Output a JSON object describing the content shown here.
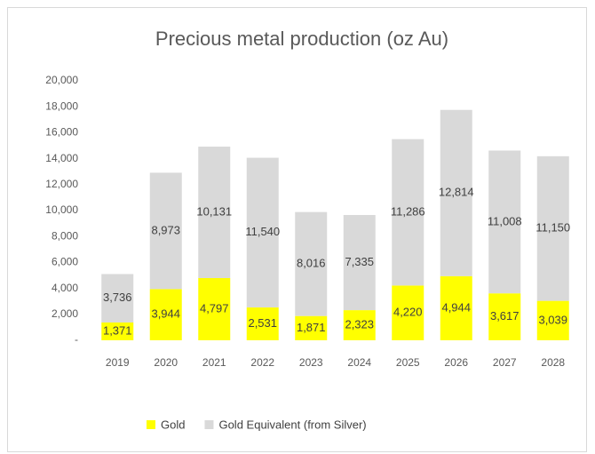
{
  "chart_data": {
    "type": "stacked_bar",
    "title": "Precious metal production (oz Au)",
    "categories": [
      "2019",
      "2020",
      "2021",
      "2022",
      "2023",
      "2024",
      "2025",
      "2026",
      "2027",
      "2028"
    ],
    "series": [
      {
        "name": "Gold",
        "color": "#ffff00",
        "values": [
          1371,
          3944,
          4797,
          2531,
          1871,
          2323,
          4220,
          4944,
          3617,
          3039
        ],
        "value_labels": [
          "1,371",
          "3,944",
          "4,797",
          "2,531",
          "1,871",
          "2,323",
          "4,220",
          "4,944",
          "3,617",
          "3,039"
        ]
      },
      {
        "name": "Gold Equivalent (from Silver)",
        "color": "#d9d9d9",
        "values": [
          3736,
          8973,
          10131,
          11540,
          8016,
          7335,
          11286,
          12814,
          11008,
          11150
        ],
        "value_labels": [
          "3,736",
          "8,973",
          "10,131",
          "11,540",
          "8,016",
          "7,335",
          "11,286",
          "12,814",
          "11,008",
          "11,150"
        ]
      }
    ],
    "ylim": [
      0,
      20000
    ],
    "yticks": [
      {
        "value": 0,
        "label": "-"
      },
      {
        "value": 2000,
        "label": "2,000"
      },
      {
        "value": 4000,
        "label": "4,000"
      },
      {
        "value": 6000,
        "label": "6,000"
      },
      {
        "value": 8000,
        "label": "8,000"
      },
      {
        "value": 10000,
        "label": "10,000"
      },
      {
        "value": 12000,
        "label": "12,000"
      },
      {
        "value": 14000,
        "label": "14,000"
      },
      {
        "value": 16000,
        "label": "16,000"
      },
      {
        "value": 18000,
        "label": "18,000"
      },
      {
        "value": 20000,
        "label": "20,000"
      }
    ],
    "legend": "bottom"
  }
}
